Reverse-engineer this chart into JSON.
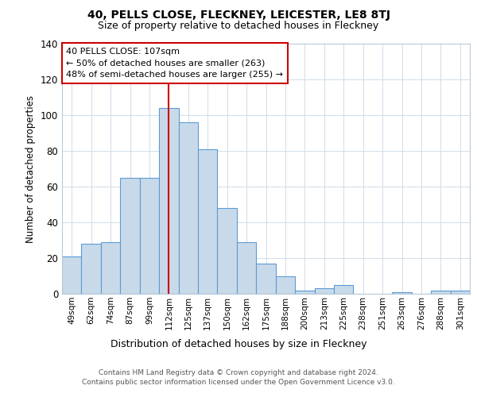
{
  "title1": "40, PELLS CLOSE, FLECKNEY, LEICESTER, LE8 8TJ",
  "title2": "Size of property relative to detached houses in Fleckney",
  "xlabel": "Distribution of detached houses by size in Fleckney",
  "ylabel": "Number of detached properties",
  "categories": [
    "49sqm",
    "62sqm",
    "74sqm",
    "87sqm",
    "99sqm",
    "112sqm",
    "125sqm",
    "137sqm",
    "150sqm",
    "162sqm",
    "175sqm",
    "188sqm",
    "200sqm",
    "213sqm",
    "225sqm",
    "238sqm",
    "251sqm",
    "263sqm",
    "276sqm",
    "288sqm",
    "301sqm"
  ],
  "values": [
    21,
    28,
    29,
    65,
    65,
    104,
    96,
    81,
    48,
    29,
    17,
    10,
    2,
    3,
    5,
    0,
    0,
    1,
    0,
    2,
    2
  ],
  "bar_color": "#c8daea",
  "bar_edge_color": "#5b9bd5",
  "vline_x": 5.0,
  "vline_color": "#cc0000",
  "ann_line1": "40 PELLS CLOSE: 107sqm",
  "ann_line2": "← 50% of detached houses are smaller (263)",
  "ann_line3": "48% of semi-detached houses are larger (255) →",
  "ylim": [
    0,
    140
  ],
  "yticks": [
    0,
    20,
    40,
    60,
    80,
    100,
    120,
    140
  ],
  "footer": "Contains HM Land Registry data © Crown copyright and database right 2024.\nContains public sector information licensed under the Open Government Licence v3.0.",
  "bg_color": "#ffffff",
  "plot_bg_color": "#ffffff",
  "grid_color": "#d0dce8"
}
